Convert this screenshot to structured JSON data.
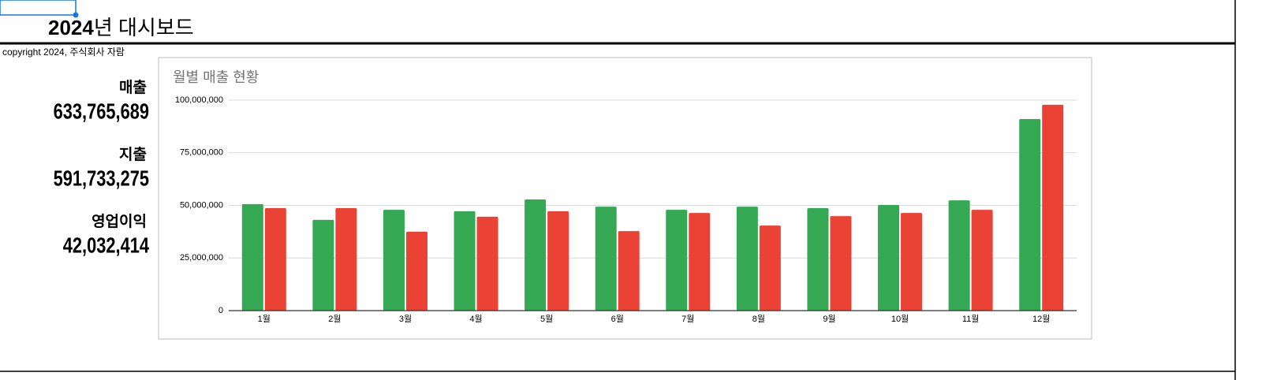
{
  "header": {
    "title_year": "2024",
    "title_rest": "년 대시보드",
    "copyright": "copyright 2024, 주식회사 자람"
  },
  "kpis": [
    {
      "label": "매출",
      "value": "633,765,689"
    },
    {
      "label": "지출",
      "value": "591,733,275"
    },
    {
      "label": "영업이익",
      "value": "42,032,414"
    }
  ],
  "chart_data": {
    "type": "bar",
    "title": "월별 매출 현황",
    "categories": [
      "1월",
      "2월",
      "3월",
      "4월",
      "5월",
      "6월",
      "7월",
      "8월",
      "9월",
      "10월",
      "11월",
      "12월"
    ],
    "series": [
      {
        "color": "#34a853",
        "values": [
          50600000,
          43100000,
          47900000,
          47200000,
          52800000,
          49400000,
          47900000,
          49400000,
          48700000,
          50200000,
          52400000,
          91000000
        ]
      },
      {
        "color": "#ea4335",
        "values": [
          48700000,
          48700000,
          37500000,
          44600000,
          47200000,
          37800000,
          46400000,
          40400000,
          44900000,
          46400000,
          47900000,
          97800000
        ]
      }
    ],
    "ylim": [
      0,
      100000000
    ],
    "yticks": [
      0,
      {
        "value": 25000000,
        "label": "25,000,000"
      },
      {
        "value": 50000000,
        "label": "50,000,000"
      },
      {
        "value": 75000000,
        "label": "75,000,000"
      },
      {
        "value": 100000000,
        "label": "100,000,000"
      }
    ],
    "grid": true
  }
}
